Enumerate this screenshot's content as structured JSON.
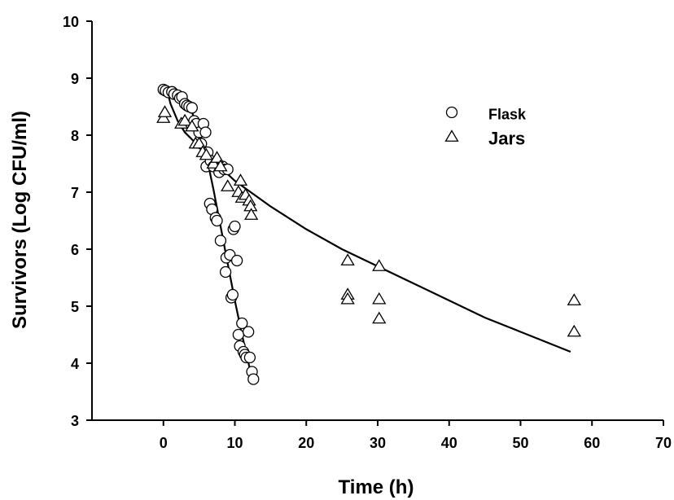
{
  "chart_data": {
    "type": "scatter",
    "xlabel": "Time (h)",
    "ylabel": "Survivors (Log CFU/ml)",
    "xlim": [
      -10,
      70
    ],
    "ylim": [
      3,
      10
    ],
    "xticks": [
      0,
      10,
      20,
      30,
      40,
      50,
      60,
      70
    ],
    "yticks": [
      3,
      4,
      5,
      6,
      7,
      8,
      9,
      10
    ],
    "legend_position": "top-right",
    "series": [
      {
        "name": "Flask",
        "marker": "circle",
        "points": [
          [
            0,
            8.8
          ],
          [
            0.3,
            8.78
          ],
          [
            0.7,
            8.75
          ],
          [
            1.2,
            8.76
          ],
          [
            1.5,
            8.72
          ],
          [
            2.0,
            8.7
          ],
          [
            2.3,
            8.65
          ],
          [
            2.6,
            8.67
          ],
          [
            3.0,
            8.55
          ],
          [
            3.3,
            8.52
          ],
          [
            3.6,
            8.5
          ],
          [
            4.0,
            8.48
          ],
          [
            4.3,
            8.25
          ],
          [
            4.6,
            8.2
          ],
          [
            5.0,
            8.05
          ],
          [
            5.3,
            7.85
          ],
          [
            5.6,
            8.2
          ],
          [
            5.9,
            8.05
          ],
          [
            6.0,
            7.45
          ],
          [
            6.2,
            7.7
          ],
          [
            6.5,
            6.8
          ],
          [
            6.6,
            7.55
          ],
          [
            6.8,
            6.7
          ],
          [
            7.0,
            7.45
          ],
          [
            7.3,
            6.55
          ],
          [
            7.5,
            6.5
          ],
          [
            7.8,
            7.35
          ],
          [
            8.0,
            6.15
          ],
          [
            8.3,
            7.45
          ],
          [
            8.5,
            7.4
          ],
          [
            8.7,
            5.6
          ],
          [
            8.8,
            5.85
          ],
          [
            9.0,
            7.4
          ],
          [
            9.3,
            5.9
          ],
          [
            9.5,
            5.15
          ],
          [
            9.7,
            5.2
          ],
          [
            9.8,
            6.35
          ],
          [
            10.0,
            6.4
          ],
          [
            10.3,
            5.8
          ],
          [
            10.5,
            4.5
          ],
          [
            10.7,
            4.3
          ],
          [
            11.0,
            4.7
          ],
          [
            11.2,
            4.2
          ],
          [
            11.4,
            4.15
          ],
          [
            11.6,
            4.1
          ],
          [
            11.9,
            4.55
          ],
          [
            12.1,
            4.1
          ],
          [
            12.4,
            3.85
          ],
          [
            12.6,
            3.72
          ]
        ]
      },
      {
        "name": "Jars",
        "marker": "triangle",
        "points": [
          [
            0,
            8.3
          ],
          [
            0.2,
            8.4
          ],
          [
            2.5,
            8.2
          ],
          [
            3.0,
            8.25
          ],
          [
            4.0,
            8.15
          ],
          [
            4.5,
            7.85
          ],
          [
            5.0,
            7.85
          ],
          [
            5.5,
            7.7
          ],
          [
            6.0,
            7.65
          ],
          [
            7.0,
            7.5
          ],
          [
            7.5,
            7.6
          ],
          [
            8.0,
            7.45
          ],
          [
            9.0,
            7.1
          ],
          [
            10.5,
            7.0
          ],
          [
            10.8,
            7.2
          ],
          [
            11.0,
            6.9
          ],
          [
            11.5,
            6.95
          ],
          [
            12.0,
            6.85
          ],
          [
            12.2,
            6.75
          ],
          [
            12.3,
            6.6
          ],
          [
            25.8,
            5.8
          ],
          [
            25.8,
            5.2
          ],
          [
            25.8,
            5.12
          ],
          [
            30.2,
            5.7
          ],
          [
            30.2,
            5.12
          ],
          [
            30.2,
            4.78
          ],
          [
            57.5,
            5.1
          ],
          [
            57.5,
            4.55
          ]
        ]
      }
    ],
    "fit_curves": [
      {
        "series": "Flask",
        "points": [
          [
            0,
            8.82
          ],
          [
            1,
            8.8
          ],
          [
            2,
            8.73
          ],
          [
            3,
            8.6
          ],
          [
            4,
            8.4
          ],
          [
            5,
            8.1
          ],
          [
            6,
            7.65
          ],
          [
            7,
            7.05
          ],
          [
            8,
            6.4
          ],
          [
            9,
            5.75
          ],
          [
            10,
            5.1
          ],
          [
            11,
            4.5
          ],
          [
            12,
            3.95
          ],
          [
            12.5,
            3.7
          ]
        ]
      },
      {
        "series": "Jars",
        "points": [
          [
            0.5,
            8.8
          ],
          [
            1,
            8.55
          ],
          [
            2,
            8.25
          ],
          [
            3,
            8.05
          ],
          [
            5,
            7.8
          ],
          [
            7,
            7.55
          ],
          [
            10,
            7.2
          ],
          [
            15,
            6.75
          ],
          [
            20,
            6.35
          ],
          [
            25,
            6.0
          ],
          [
            30,
            5.7
          ],
          [
            35,
            5.4
          ],
          [
            40,
            5.1
          ],
          [
            45,
            4.8
          ],
          [
            50,
            4.55
          ],
          [
            55,
            4.3
          ],
          [
            57,
            4.2
          ]
        ]
      }
    ]
  }
}
